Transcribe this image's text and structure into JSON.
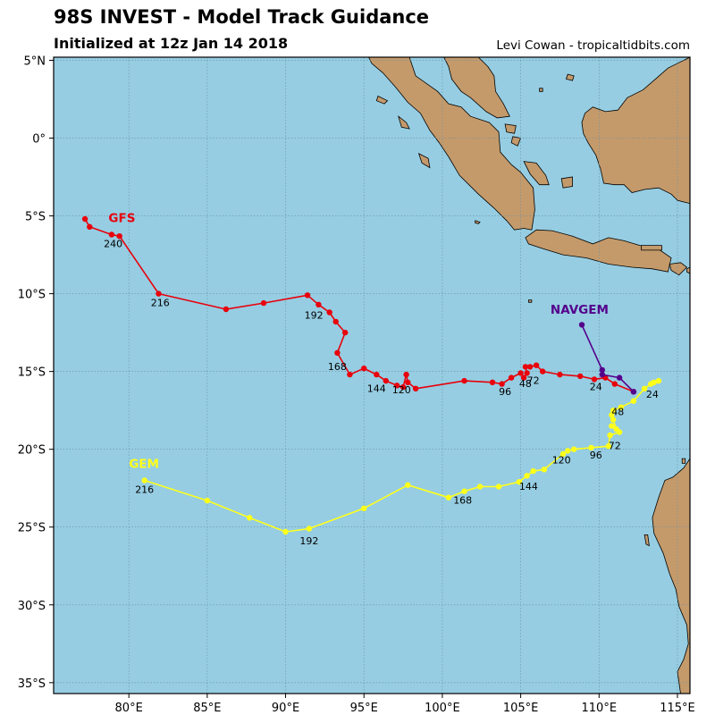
{
  "header": {
    "title": "98S INVEST - Model Track Guidance",
    "subtitle": "Initialized at 12z Jan 14 2018",
    "credit": "Levi Cowan - tropicaltidbits.com"
  },
  "colors": {
    "ocean": "#96cde2",
    "land": "#c49a6b",
    "gfs": "#e8000b",
    "gem": "#ffff1a",
    "navgem": "#54008c"
  },
  "map": {
    "lon_range": [
      75.2,
      115.8
    ],
    "lat_range": [
      -35.7,
      5.2
    ],
    "lon_ticks": [
      {
        "value": 80,
        "label": "80°E"
      },
      {
        "value": 85,
        "label": "85°E"
      },
      {
        "value": 90,
        "label": "90°E"
      },
      {
        "value": 95,
        "label": "95°E"
      },
      {
        "value": 100,
        "label": "100°E"
      },
      {
        "value": 105,
        "label": "105°E"
      },
      {
        "value": 110,
        "label": "110°E"
      },
      {
        "value": 115,
        "label": "115°E"
      }
    ],
    "lat_ticks": [
      {
        "value": 5,
        "label": "5°N"
      },
      {
        "value": 0,
        "label": "0°"
      },
      {
        "value": -5,
        "label": "5°S"
      },
      {
        "value": -10,
        "label": "10°S"
      },
      {
        "value": -15,
        "label": "15°S"
      },
      {
        "value": -20,
        "label": "20°S"
      },
      {
        "value": -25,
        "label": "25°S"
      },
      {
        "value": -30,
        "label": "30°S"
      },
      {
        "value": -35,
        "label": "35°S"
      }
    ]
  },
  "tracks": [
    {
      "name": "GFS",
      "color": "#e8000b",
      "label_at": [
        78.7,
        -5.4
      ],
      "points": [
        [
          112.2,
          -16.3
        ],
        [
          111.0,
          -15.8
        ],
        [
          110.4,
          -15.4
        ],
        [
          109.7,
          -15.5
        ],
        [
          108.8,
          -15.3
        ],
        [
          107.5,
          -15.2
        ],
        [
          106.4,
          -15.0
        ],
        [
          106.0,
          -14.6
        ],
        [
          105.6,
          -14.7
        ],
        [
          105.3,
          -14.7
        ],
        [
          105.4,
          -15.1
        ],
        [
          105.2,
          -15.4
        ],
        [
          105.0,
          -15.1
        ],
        [
          104.4,
          -15.4
        ],
        [
          103.8,
          -15.8
        ],
        [
          103.2,
          -15.7
        ],
        [
          101.4,
          -15.6
        ],
        [
          98.3,
          -16.1
        ],
        [
          97.8,
          -15.7
        ],
        [
          97.7,
          -15.2
        ],
        [
          97.5,
          -16.0
        ],
        [
          97.1,
          -15.9
        ],
        [
          96.4,
          -15.6
        ],
        [
          95.8,
          -15.2
        ],
        [
          95.0,
          -14.8
        ],
        [
          94.1,
          -15.2
        ],
        [
          93.3,
          -13.8
        ],
        [
          93.8,
          -12.5
        ],
        [
          93.2,
          -11.8
        ],
        [
          92.8,
          -11.2
        ],
        [
          92.1,
          -10.7
        ],
        [
          91.4,
          -10.1
        ],
        [
          88.6,
          -10.6
        ],
        [
          86.2,
          -11.0
        ],
        [
          81.9,
          -10.0
        ],
        [
          79.4,
          -6.3
        ],
        [
          78.9,
          -6.2
        ],
        [
          77.5,
          -5.7
        ],
        [
          77.2,
          -5.2
        ]
      ],
      "hour_labels": [
        {
          "text": "24",
          "at": [
            109.8,
            -16.2
          ]
        },
        {
          "text": "48",
          "at": [
            105.3,
            -16.0
          ]
        },
        {
          "text": "72",
          "at": [
            105.8,
            -15.8
          ]
        },
        {
          "text": "96",
          "at": [
            104.0,
            -16.5
          ]
        },
        {
          "text": "120",
          "at": [
            97.4,
            -16.4
          ]
        },
        {
          "text": "144",
          "at": [
            95.8,
            -16.3
          ]
        },
        {
          "text": "168",
          "at": [
            93.3,
            -14.9
          ]
        },
        {
          "text": "192",
          "at": [
            91.8,
            -11.6
          ]
        },
        {
          "text": "216",
          "at": [
            82.0,
            -10.8
          ]
        },
        {
          "text": "240",
          "at": [
            79.0,
            -7.0
          ]
        }
      ]
    },
    {
      "name": "GEM",
      "color": "#ffff1a",
      "label_at": [
        80.0,
        -21.2
      ],
      "points": [
        [
          113.8,
          -15.6
        ],
        [
          113.5,
          -15.7
        ],
        [
          113.3,
          -15.8
        ],
        [
          112.9,
          -16.1
        ],
        [
          112.2,
          -16.9
        ],
        [
          111.4,
          -17.3
        ],
        [
          110.9,
          -17.5
        ],
        [
          110.8,
          -17.8
        ],
        [
          110.9,
          -18.1
        ],
        [
          111.1,
          -18.7
        ],
        [
          110.8,
          -18.5
        ],
        [
          111.3,
          -18.9
        ],
        [
          110.7,
          -19.1
        ],
        [
          110.6,
          -19.8
        ],
        [
          109.5,
          -19.9
        ],
        [
          108.4,
          -20.0
        ],
        [
          108.0,
          -20.1
        ],
        [
          107.7,
          -20.3
        ],
        [
          106.5,
          -21.3
        ],
        [
          105.8,
          -21.4
        ],
        [
          105.4,
          -21.7
        ],
        [
          104.9,
          -22.1
        ],
        [
          103.6,
          -22.4
        ],
        [
          102.4,
          -22.4
        ],
        [
          101.4,
          -22.7
        ],
        [
          100.4,
          -23.1
        ],
        [
          97.8,
          -22.3
        ],
        [
          95.0,
          -23.8
        ],
        [
          91.5,
          -25.1
        ],
        [
          90.0,
          -25.3
        ],
        [
          87.7,
          -24.4
        ],
        [
          85.0,
          -23.3
        ],
        [
          81.0,
          -22.0
        ]
      ],
      "hour_labels": [
        {
          "text": "24",
          "at": [
            113.4,
            -16.7
          ]
        },
        {
          "text": "48",
          "at": [
            111.2,
            -17.8
          ]
        },
        {
          "text": "72",
          "at": [
            111.0,
            -20.0
          ]
        },
        {
          "text": "96",
          "at": [
            109.8,
            -20.6
          ]
        },
        {
          "text": "120",
          "at": [
            107.6,
            -20.9
          ]
        },
        {
          "text": "144",
          "at": [
            105.5,
            -22.6
          ]
        },
        {
          "text": "168",
          "at": [
            101.3,
            -23.5
          ]
        },
        {
          "text": "192",
          "at": [
            91.5,
            -26.1
          ]
        },
        {
          "text": "216",
          "at": [
            81.0,
            -22.8
          ]
        }
      ]
    },
    {
      "name": "NAVGEM",
      "color": "#54008c",
      "label_at": [
        106.9,
        -11.3
      ],
      "points": [
        [
          112.2,
          -16.3
        ],
        [
          111.3,
          -15.4
        ],
        [
          110.2,
          -15.2
        ],
        [
          110.2,
          -14.9
        ],
        [
          108.9,
          -12.0
        ]
      ],
      "hour_labels": []
    }
  ],
  "land": [
    {
      "name": "sumatra",
      "coords": [
        [
          95.3,
          5.2
        ],
        [
          97.9,
          5.2
        ],
        [
          98.3,
          4.0
        ],
        [
          99.7,
          3.0
        ],
        [
          100.4,
          2.2
        ],
        [
          101.2,
          2.0
        ],
        [
          101.8,
          1.4
        ],
        [
          103.0,
          1.0
        ],
        [
          103.6,
          0.4
        ],
        [
          103.7,
          -0.9
        ],
        [
          104.4,
          -1.7
        ],
        [
          105.0,
          -2.2
        ],
        [
          105.8,
          -3.2
        ],
        [
          105.9,
          -4.6
        ],
        [
          105.7,
          -5.9
        ],
        [
          105.2,
          -5.8
        ],
        [
          104.6,
          -5.9
        ],
        [
          104.1,
          -5.3
        ],
        [
          103.3,
          -4.5
        ],
        [
          102.3,
          -3.6
        ],
        [
          101.1,
          -2.4
        ],
        [
          100.4,
          -1.2
        ],
        [
          99.8,
          -0.3
        ],
        [
          99.2,
          0.5
        ],
        [
          98.6,
          1.6
        ],
        [
          97.8,
          2.3
        ],
        [
          97.0,
          3.3
        ],
        [
          96.2,
          4.2
        ],
        [
          95.5,
          4.8
        ]
      ]
    },
    {
      "name": "malay-peninsula",
      "coords": [
        [
          100.1,
          5.2
        ],
        [
          102.3,
          5.2
        ],
        [
          102.9,
          4.6
        ],
        [
          103.3,
          4.0
        ],
        [
          103.4,
          3.0
        ],
        [
          103.9,
          2.2
        ],
        [
          104.3,
          1.4
        ],
        [
          103.5,
          1.3
        ],
        [
          102.8,
          1.7
        ],
        [
          101.8,
          2.6
        ],
        [
          101.2,
          3.0
        ],
        [
          100.6,
          3.8
        ],
        [
          100.4,
          4.6
        ]
      ]
    },
    {
      "name": "borneo",
      "coords": [
        [
          115.8,
          5.2
        ],
        [
          115.8,
          -4.2
        ],
        [
          115.0,
          -4.0
        ],
        [
          114.6,
          -3.6
        ],
        [
          113.8,
          -3.2
        ],
        [
          112.9,
          -3.3
        ],
        [
          112.1,
          -3.5
        ],
        [
          111.6,
          -3.0
        ],
        [
          111.0,
          -3.0
        ],
        [
          110.3,
          -2.9
        ],
        [
          110.1,
          -2.0
        ],
        [
          109.8,
          -1.1
        ],
        [
          109.3,
          -0.3
        ],
        [
          109.0,
          0.3
        ],
        [
          108.9,
          1.0
        ],
        [
          109.1,
          1.6
        ],
        [
          109.6,
          2.0
        ],
        [
          110.4,
          1.7
        ],
        [
          111.2,
          1.8
        ],
        [
          111.8,
          2.6
        ],
        [
          112.8,
          3.1
        ],
        [
          113.6,
          3.8
        ],
        [
          114.4,
          4.5
        ],
        [
          115.2,
          4.9
        ]
      ]
    },
    {
      "name": "java",
      "coords": [
        [
          105.3,
          -6.4
        ],
        [
          106.0,
          -5.9
        ],
        [
          107.0,
          -5.95
        ],
        [
          108.3,
          -6.3
        ],
        [
          109.6,
          -6.8
        ],
        [
          110.6,
          -6.4
        ],
        [
          111.6,
          -6.6
        ],
        [
          112.6,
          -6.9
        ],
        [
          113.6,
          -7.0
        ],
        [
          114.6,
          -7.7
        ],
        [
          114.4,
          -8.6
        ],
        [
          113.4,
          -8.4
        ],
        [
          112.1,
          -8.3
        ],
        [
          110.6,
          -8.1
        ],
        [
          109.2,
          -7.7
        ],
        [
          107.7,
          -7.5
        ],
        [
          106.4,
          -7.1
        ],
        [
          105.5,
          -6.8
        ]
      ]
    },
    {
      "name": "bali",
      "coords": [
        [
          114.5,
          -8.1
        ],
        [
          115.2,
          -8.0
        ],
        [
          115.6,
          -8.3
        ],
        [
          115.1,
          -8.8
        ],
        [
          114.6,
          -8.5
        ]
      ]
    },
    {
      "name": "madura",
      "coords": [
        [
          112.7,
          -6.9
        ],
        [
          114.0,
          -6.9
        ],
        [
          114.0,
          -7.2
        ],
        [
          112.7,
          -7.2
        ]
      ]
    },
    {
      "name": "bangka",
      "coords": [
        [
          105.2,
          -1.5
        ],
        [
          106.0,
          -1.6
        ],
        [
          106.6,
          -2.4
        ],
        [
          106.8,
          -3.0
        ],
        [
          106.2,
          -3.0
        ],
        [
          105.6,
          -2.3
        ]
      ]
    },
    {
      "name": "belitung",
      "coords": [
        [
          107.6,
          -2.6
        ],
        [
          108.3,
          -2.5
        ],
        [
          108.3,
          -3.1
        ],
        [
          107.7,
          -3.2
        ]
      ]
    },
    {
      "name": "riau",
      "coords": [
        [
          104.0,
          0.9
        ],
        [
          104.7,
          0.8
        ],
        [
          104.6,
          0.3
        ],
        [
          104.1,
          0.4
        ]
      ]
    },
    {
      "name": "lingga",
      "coords": [
        [
          104.5,
          0.1
        ],
        [
          105.0,
          0.0
        ],
        [
          104.8,
          -0.5
        ],
        [
          104.4,
          -0.3
        ]
      ]
    },
    {
      "name": "simeulue",
      "coords": [
        [
          95.9,
          2.7
        ],
        [
          96.5,
          2.4
        ],
        [
          96.3,
          2.2
        ],
        [
          95.8,
          2.4
        ]
      ]
    },
    {
      "name": "nias",
      "coords": [
        [
          97.2,
          1.4
        ],
        [
          97.7,
          1.0
        ],
        [
          97.9,
          0.6
        ],
        [
          97.4,
          0.7
        ]
      ]
    },
    {
      "name": "siberut",
      "coords": [
        [
          98.5,
          -1.0
        ],
        [
          99.1,
          -1.3
        ],
        [
          99.2,
          -1.9
        ],
        [
          98.7,
          -1.6
        ]
      ]
    },
    {
      "name": "enggano",
      "coords": [
        [
          102.1,
          -5.3
        ],
        [
          102.4,
          -5.4
        ],
        [
          102.3,
          -5.5
        ],
        [
          102.1,
          -5.45
        ]
      ]
    },
    {
      "name": "anambas",
      "coords": [
        [
          106.2,
          3.2
        ],
        [
          106.4,
          3.2
        ],
        [
          106.4,
          3.0
        ],
        [
          106.2,
          3.0
        ]
      ]
    },
    {
      "name": "natuna",
      "coords": [
        [
          108.0,
          4.1
        ],
        [
          108.4,
          4.0
        ],
        [
          108.3,
          3.7
        ],
        [
          107.9,
          3.8
        ]
      ]
    },
    {
      "name": "christmas",
      "coords": [
        [
          105.5,
          -10.4
        ],
        [
          105.7,
          -10.4
        ],
        [
          105.7,
          -10.55
        ],
        [
          105.5,
          -10.55
        ]
      ]
    },
    {
      "name": "sumbawa-w",
      "coords": [
        [
          115.6,
          -8.4
        ],
        [
          115.8,
          -8.3
        ],
        [
          115.8,
          -8.7
        ],
        [
          115.6,
          -8.6
        ]
      ]
    },
    {
      "name": "australia",
      "coords": [
        [
          115.8,
          -20.6
        ],
        [
          115.8,
          -35.7
        ],
        [
          115.2,
          -35.7
        ],
        [
          115.0,
          -34.3
        ],
        [
          115.4,
          -33.5
        ],
        [
          115.7,
          -32.5
        ],
        [
          115.6,
          -31.3
        ],
        [
          115.1,
          -30.1
        ],
        [
          114.9,
          -29.0
        ],
        [
          114.5,
          -28.0
        ],
        [
          114.1,
          -26.7
        ],
        [
          113.5,
          -25.4
        ],
        [
          113.4,
          -24.4
        ],
        [
          113.8,
          -23.1
        ],
        [
          114.2,
          -22.0
        ],
        [
          114.7,
          -21.8
        ],
        [
          115.4,
          -21.2
        ]
      ]
    },
    {
      "name": "dirk-hartog",
      "coords": [
        [
          112.9,
          -25.5
        ],
        [
          113.1,
          -25.5
        ],
        [
          113.2,
          -26.2
        ],
        [
          113.0,
          -26.1
        ]
      ]
    },
    {
      "name": "barrow",
      "coords": [
        [
          115.3,
          -20.6
        ],
        [
          115.5,
          -20.6
        ],
        [
          115.5,
          -20.9
        ],
        [
          115.3,
          -20.9
        ]
      ]
    }
  ]
}
